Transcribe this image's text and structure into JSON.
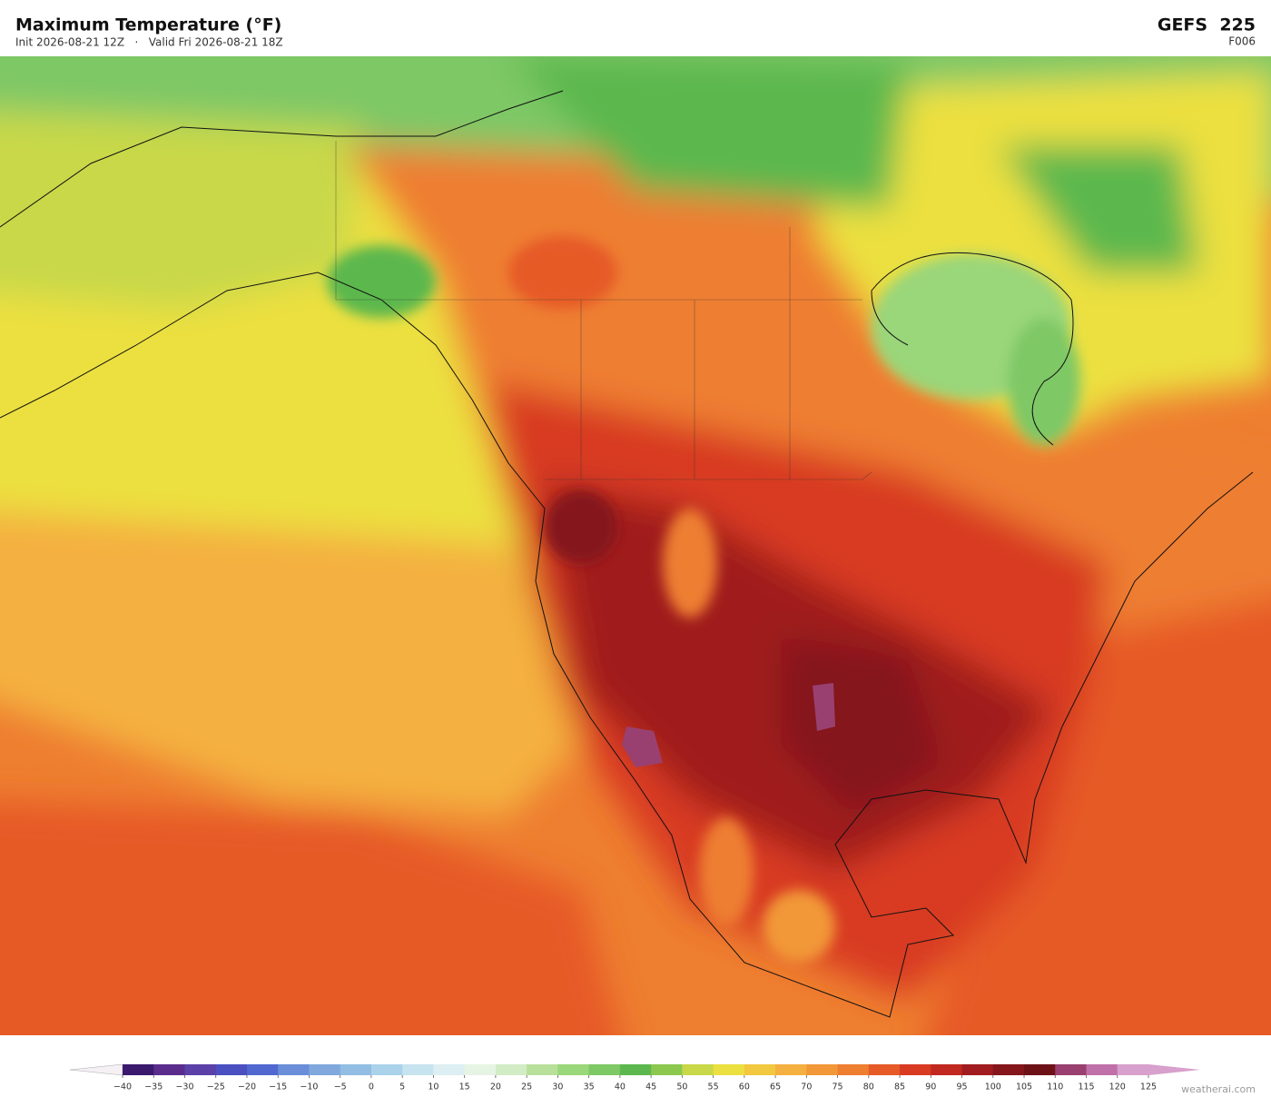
{
  "header": {
    "title": "Maximum Temperature  (°F)",
    "subtitle": "Init 2026-08-21 12Z   ·   Valid Fri 2026-08-21 18Z",
    "model": "GEFS  225",
    "step": "F006"
  },
  "colorbar": {
    "ticks": [
      {
        "value": -40,
        "label": "−40"
      },
      {
        "value": -35,
        "label": "−35"
      },
      {
        "value": -30,
        "label": "−30"
      },
      {
        "value": -25,
        "label": "−25"
      },
      {
        "value": -20,
        "label": "−20"
      },
      {
        "value": -15,
        "label": "−15"
      },
      {
        "value": -10,
        "label": "−10"
      },
      {
        "value": -5,
        "label": "−5"
      },
      0,
      5,
      10,
      15,
      20,
      25,
      30,
      35,
      40,
      45,
      50,
      55,
      60,
      65,
      70,
      75,
      80,
      85,
      90,
      95,
      100,
      105,
      110,
      115,
      120,
      125
    ],
    "colors": [
      "#3b1a6e",
      "#5a2d8c",
      "#5b40a8",
      "#4a50c0",
      "#5068d0",
      "#6a8ed8",
      "#80a8dc",
      "#92bee3",
      "#aad2ea",
      "#c6e3ef",
      "#ddeff2",
      "#e6f4e4",
      "#d2ecc6",
      "#b8e09a",
      "#9ad67a",
      "#7ec866",
      "#5cb84e",
      "#8cc850",
      "#c8d848",
      "#ece040",
      "#f2c840",
      "#f4b040",
      "#f29838",
      "#ee7e30",
      "#e65a28",
      "#d83a22",
      "#c02820",
      "#a01c1e",
      "#84161c",
      "#6e1218",
      "#9a4070",
      "#c070a8",
      "#d8a0cc"
    ],
    "under_color": "#f4f0f4",
    "over_color": "#d8a0cc"
  },
  "watermark": "weatherai.com"
}
